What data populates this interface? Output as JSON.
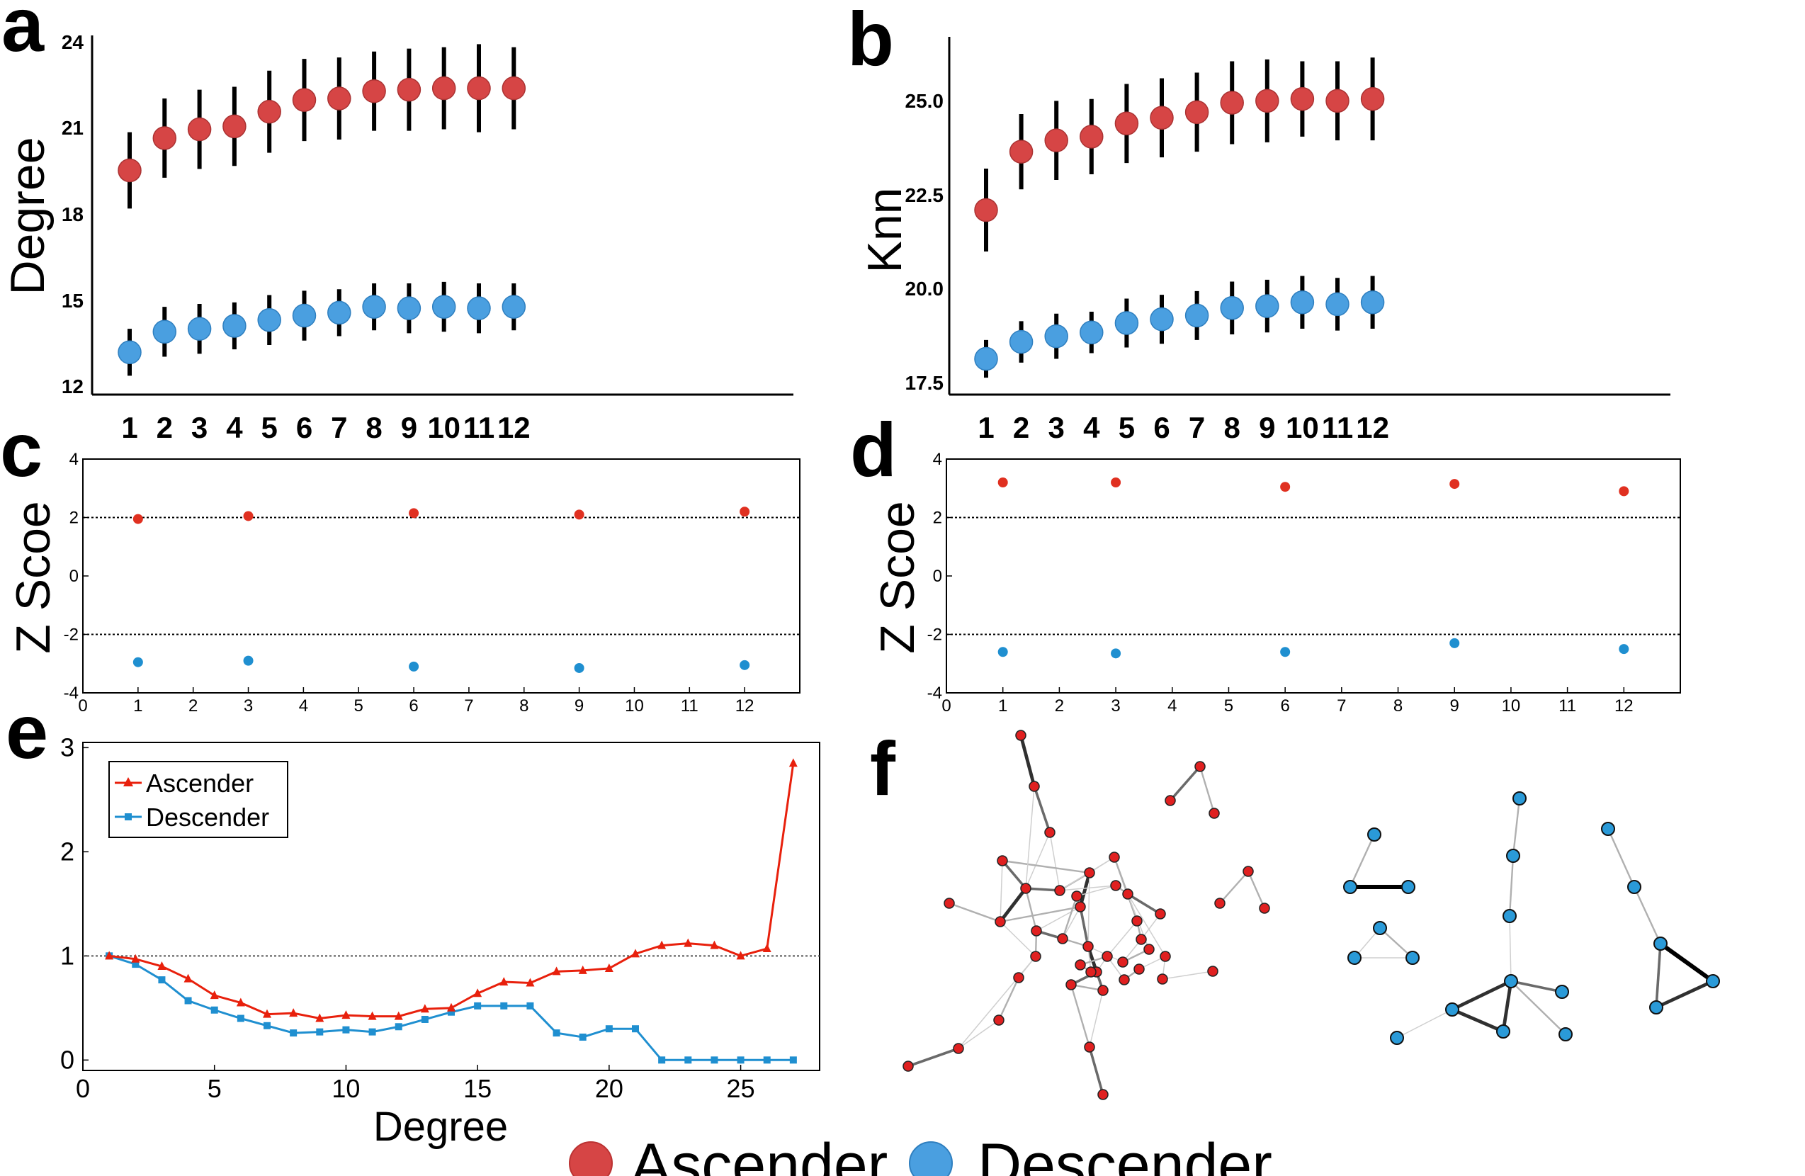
{
  "panel_labels": {
    "a": "a",
    "b": "b",
    "c": "c",
    "d": "d",
    "e": "e",
    "f": "f"
  },
  "chart_data": [
    {
      "id": "a",
      "type": "scatter",
      "ylabel": "Degree",
      "x": [
        1,
        2,
        3,
        4,
        5,
        6,
        7,
        8,
        9,
        10,
        11,
        12
      ],
      "xticklabels": [
        "1",
        "2",
        "3",
        "4",
        "5",
        "6",
        "7",
        "8",
        "9",
        "10",
        "11",
        "12"
      ],
      "ylim": [
        12,
        24
      ],
      "yticks": [
        12,
        15,
        18,
        21,
        24
      ],
      "yticklabels": [
        "12",
        "15",
        "18",
        "21",
        "24"
      ],
      "series": [
        {
          "name": "Ascender",
          "color": "#d64545",
          "values": [
            19.4,
            20.5,
            20.8,
            20.9,
            21.4,
            21.8,
            21.85,
            22.1,
            22.15,
            22.2,
            22.2,
            22.2
          ],
          "err": [
            1.3,
            1.35,
            1.35,
            1.35,
            1.4,
            1.4,
            1.4,
            1.35,
            1.4,
            1.4,
            1.5,
            1.4
          ]
        },
        {
          "name": "Descender",
          "color": "#4a9fe0",
          "values": [
            13.2,
            13.9,
            14.0,
            14.1,
            14.3,
            14.45,
            14.55,
            14.75,
            14.7,
            14.75,
            14.7,
            14.75
          ],
          "err": [
            0.8,
            0.85,
            0.85,
            0.8,
            0.85,
            0.85,
            0.8,
            0.8,
            0.85,
            0.85,
            0.85,
            0.8
          ]
        }
      ]
    },
    {
      "id": "b",
      "type": "scatter",
      "ylabel": "Knn",
      "x": [
        1,
        2,
        3,
        4,
        5,
        6,
        7,
        8,
        9,
        10,
        11,
        12
      ],
      "xticklabels": [
        "1",
        "2",
        "3",
        "4",
        "5",
        "6",
        "7",
        "8",
        "9",
        "10",
        "11",
        "12"
      ],
      "ylim": [
        17.3,
        26.8
      ],
      "yticks": [
        17.5,
        20.0,
        22.5,
        25.0
      ],
      "yticklabels": [
        "17.5",
        "20.0",
        "22.5",
        "25.0"
      ],
      "series": [
        {
          "name": "Ascender",
          "color": "#d64545",
          "values": [
            22.2,
            23.75,
            24.05,
            24.15,
            24.5,
            24.65,
            24.8,
            25.05,
            25.1,
            25.15,
            25.1,
            25.15
          ],
          "err": [
            1.1,
            1.0,
            1.05,
            1.0,
            1.05,
            1.05,
            1.05,
            1.1,
            1.1,
            1.0,
            1.05,
            1.1
          ]
        },
        {
          "name": "Descender",
          "color": "#4a9fe0",
          "values": [
            18.25,
            18.7,
            18.85,
            18.95,
            19.2,
            19.3,
            19.4,
            19.6,
            19.65,
            19.75,
            19.7,
            19.75
          ],
          "err": [
            0.5,
            0.55,
            0.6,
            0.55,
            0.65,
            0.65,
            0.65,
            0.7,
            0.7,
            0.7,
            0.7,
            0.7
          ]
        }
      ]
    },
    {
      "id": "c",
      "type": "scatter",
      "ylabel": "Z Scoe",
      "xlim": [
        0,
        13
      ],
      "xticks": [
        0,
        1,
        2,
        3,
        4,
        5,
        6,
        7,
        8,
        9,
        10,
        11,
        12
      ],
      "xticklabels": [
        "0",
        "1",
        "2",
        "3",
        "4",
        "5",
        "6",
        "7",
        "8",
        "9",
        "10",
        "11",
        "12"
      ],
      "ylim": [
        -4,
        4
      ],
      "yticks": [
        -4,
        -2,
        0,
        2,
        4
      ],
      "yticklabels": [
        "-4",
        "-2",
        "0",
        "2",
        "4"
      ],
      "reference_lines": [
        2,
        -2
      ],
      "series": [
        {
          "name": "Ascender",
          "color": "#e03020",
          "x": [
            1,
            3,
            6,
            9,
            12
          ],
          "values": [
            1.95,
            2.05,
            2.15,
            2.1,
            2.2
          ]
        },
        {
          "name": "Descender",
          "color": "#1f8fd0",
          "x": [
            1,
            3,
            6,
            9,
            12
          ],
          "values": [
            -2.95,
            -2.9,
            -3.1,
            -3.15,
            -3.05
          ]
        }
      ]
    },
    {
      "id": "d",
      "type": "scatter",
      "ylabel": "Z Scoe",
      "xlim": [
        0,
        13
      ],
      "xticks": [
        0,
        1,
        2,
        3,
        4,
        5,
        6,
        7,
        8,
        9,
        10,
        11,
        12
      ],
      "xticklabels": [
        "0",
        "1",
        "2",
        "3",
        "4",
        "5",
        "6",
        "7",
        "8",
        "9",
        "10",
        "11",
        "12"
      ],
      "ylim": [
        -4,
        4
      ],
      "yticks": [
        -4,
        -2,
        0,
        2,
        4
      ],
      "yticklabels": [
        "-4",
        "-2",
        "0",
        "2",
        "4"
      ],
      "reference_lines": [
        2,
        -2
      ],
      "series": [
        {
          "name": "Ascender",
          "color": "#e03020",
          "x": [
            1,
            3,
            6,
            9,
            12
          ],
          "values": [
            3.2,
            3.2,
            3.05,
            3.15,
            2.9
          ]
        },
        {
          "name": "Descender",
          "color": "#1f8fd0",
          "x": [
            1,
            3,
            6,
            9,
            12
          ],
          "values": [
            -2.6,
            -2.65,
            -2.6,
            -2.3,
            -2.5
          ]
        }
      ]
    },
    {
      "id": "e",
      "type": "line",
      "xlabel": "Degree",
      "ylabel": "",
      "xlim": [
        0,
        28
      ],
      "ylim": [
        -0.1,
        3.05
      ],
      "xticks": [
        0,
        5,
        10,
        15,
        20,
        25
      ],
      "xticklabels": [
        "0",
        "5",
        "10",
        "15",
        "20",
        "25"
      ],
      "yticks": [
        0,
        1,
        2,
        3
      ],
      "yticklabels": [
        "0",
        "1",
        "2",
        "3"
      ],
      "reference_lines": [
        1
      ],
      "legend": {
        "position": "top-left",
        "entries": [
          "Ascender",
          "Descender"
        ]
      },
      "series": [
        {
          "name": "Ascender",
          "color": "#e8200c",
          "marker": "triangle",
          "x": [
            1,
            2,
            3,
            4,
            5,
            6,
            7,
            8,
            9,
            10,
            11,
            12,
            13,
            14,
            15,
            16,
            17,
            18,
            19,
            20,
            21,
            22,
            23,
            24,
            25,
            26,
            27
          ],
          "values": [
            1.0,
            0.97,
            0.9,
            0.78,
            0.62,
            0.55,
            0.44,
            0.45,
            0.4,
            0.43,
            0.42,
            0.42,
            0.49,
            0.5,
            0.64,
            0.75,
            0.74,
            0.85,
            0.86,
            0.88,
            1.02,
            1.1,
            1.12,
            1.1,
            1.0,
            1.07,
            2.85
          ]
        },
        {
          "name": "Descender",
          "color": "#1f8fd0",
          "marker": "square",
          "x": [
            1,
            2,
            3,
            4,
            5,
            6,
            7,
            8,
            9,
            10,
            11,
            12,
            13,
            14,
            15,
            16,
            17,
            18,
            19,
            20,
            21,
            22,
            23,
            24,
            25,
            26,
            27
          ],
          "values": [
            1.0,
            0.92,
            0.77,
            0.57,
            0.48,
            0.4,
            0.33,
            0.26,
            0.27,
            0.29,
            0.27,
            0.32,
            0.39,
            0.46,
            0.52,
            0.52,
            0.52,
            0.26,
            0.22,
            0.3,
            0.3,
            0.0,
            0.0,
            0.0,
            0.0,
            0.0,
            0.0
          ]
        }
      ]
    }
  ],
  "network_f": {
    "ascender_color": "#e02020",
    "descender_color": "#2a9ad8",
    "description_free": true
  },
  "bottom_legend": {
    "ascender_label": "Ascender",
    "descender_label": "Descender",
    "ascender_color": "#d64545",
    "descender_color": "#4a9fe0"
  }
}
